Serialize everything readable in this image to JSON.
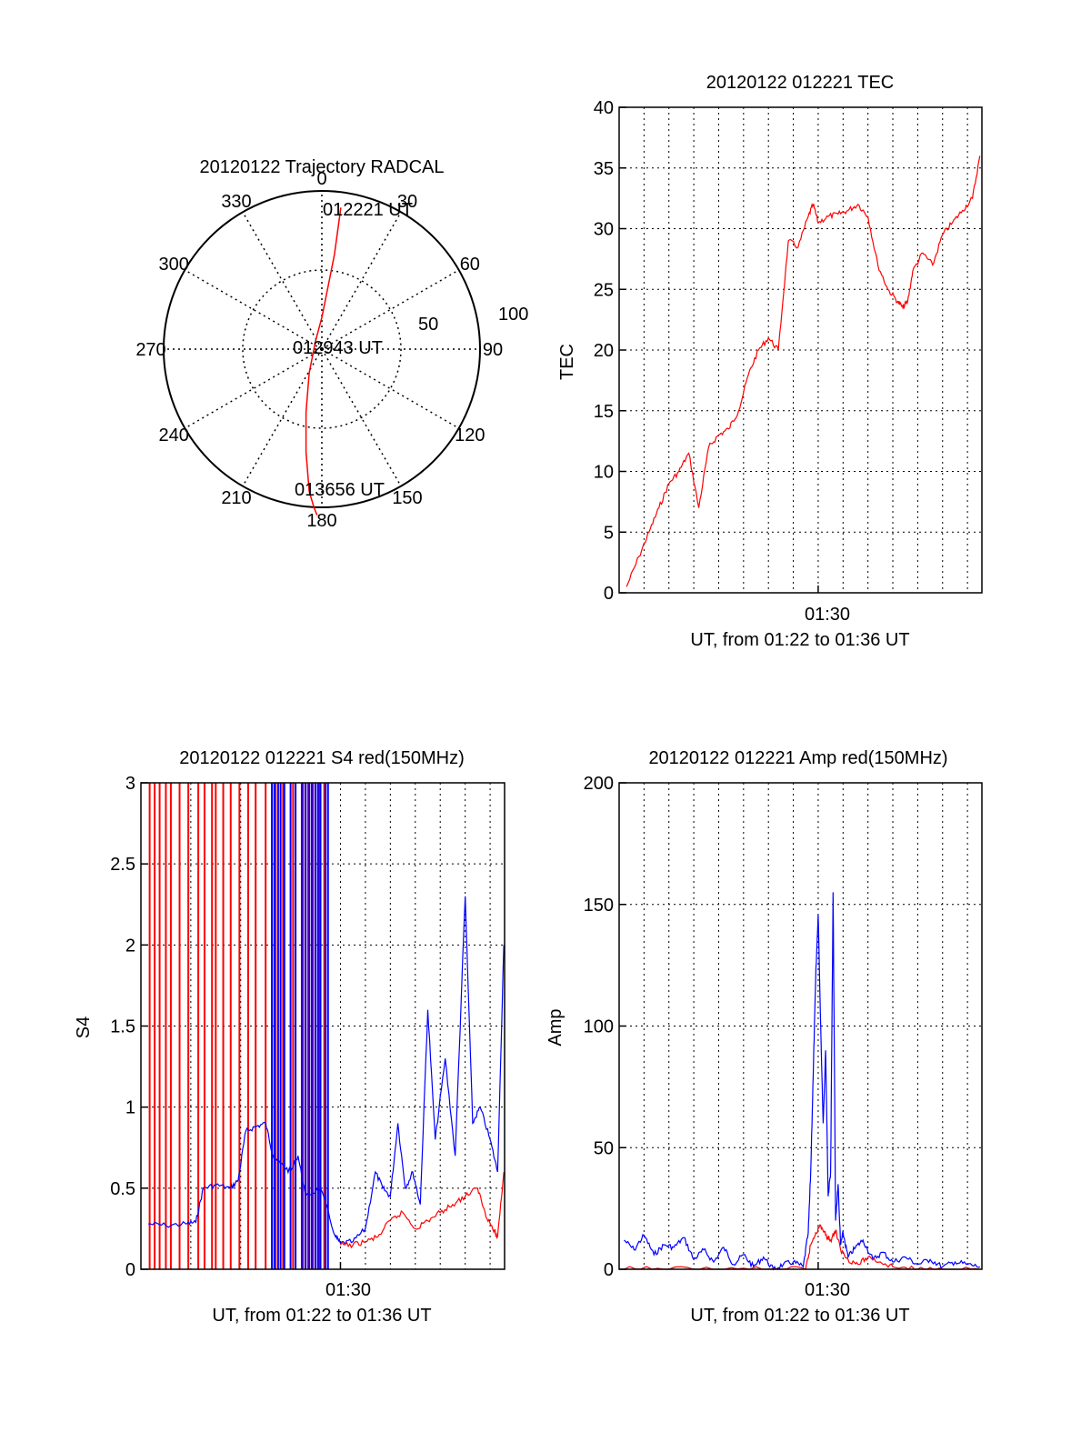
{
  "chart_data": [
    {
      "id": "polar",
      "type": "polar",
      "title": "20120122 Trajectory RADCAL",
      "angle_labels": [
        "0",
        "30",
        "60",
        "90",
        "120",
        "150",
        "180",
        "210",
        "240",
        "270",
        "300",
        "330"
      ],
      "radius_labels": [
        "50",
        "100"
      ],
      "rmax": 100,
      "trajectory": [
        [
          12,
          89.5
        ],
        [
          8,
          60
        ],
        [
          4,
          40
        ],
        [
          0,
          20
        ],
        [
          -4,
          5
        ],
        [
          -8,
          -15
        ],
        [
          -10,
          -40
        ],
        [
          -10,
          -65
        ],
        [
          -8,
          -90
        ],
        [
          -5,
          -100
        ],
        [
          -3,
          -105
        ]
      ],
      "annotations": [
        "012221 UT",
        "012943 UT",
        "013656 UT"
      ],
      "colors": {
        "trajectory": "#ff0000"
      }
    },
    {
      "id": "tec",
      "type": "line",
      "title": "20120122 012221 TEC",
      "xlabel": "UT, from 01:22 to 01:36 UT",
      "ylabel": "TEC",
      "xlim": [
        0,
        14.58
      ],
      "ylim": [
        0,
        40
      ],
      "yticks": [
        "0",
        "5",
        "10",
        "15",
        "20",
        "25",
        "30",
        "35",
        "40"
      ],
      "xtick_label": "01:30",
      "series": [
        {
          "color": "#ff0000",
          "x": [
            0.3,
            0.8,
            1.2,
            1.6,
            2.0,
            2.4,
            2.8,
            3.2,
            3.6,
            4.0,
            4.4,
            4.8,
            5.2,
            5.6,
            6.0,
            6.4,
            6.8,
            7.2,
            7.6,
            7.8,
            8.0,
            8.4,
            8.8,
            9.2,
            9.6,
            10.0,
            10.4,
            10.8,
            11.2,
            11.4,
            11.6,
            11.8,
            12.2,
            12.6,
            13.0,
            13.4,
            13.8,
            14.2,
            14.5
          ],
          "y": [
            0.5,
            3,
            5,
            7,
            9,
            10,
            11.5,
            7,
            12,
            13,
            13.5,
            15,
            18,
            20,
            21,
            20,
            29,
            28.5,
            31,
            32,
            30.5,
            31,
            31.2,
            31.5,
            32,
            31,
            27,
            25,
            24,
            23.5,
            24,
            26.5,
            28,
            27,
            29.5,
            30.5,
            31.5,
            32.5,
            36
          ]
        }
      ]
    },
    {
      "id": "s4",
      "type": "line",
      "title": "20120122 012221 S4 red(150MHz)",
      "xlabel": "UT, from 01:22 to 01:36 UT",
      "ylabel": "S4",
      "xlim": [
        0,
        14.58
      ],
      "ylim": [
        0,
        3
      ],
      "yticks": [
        "0",
        "0.5",
        "1",
        "1.5",
        "2",
        "2.5",
        "3"
      ],
      "xtick_label": "01:30",
      "series": [
        {
          "color": "#0000ff",
          "x": [
            0.3,
            1.0,
            1.8,
            2.2,
            2.5,
            3.0,
            3.6,
            3.9,
            4.2,
            4.6,
            5.0,
            5.3,
            5.6,
            6.0,
            6.3,
            6.6,
            7.2,
            7.8,
            8.0,
            8.5,
            9.0,
            9.4,
            9.7,
            10.0,
            10.3,
            10.6,
            10.9,
            11.2,
            11.5,
            11.8,
            12.2,
            12.6,
            13.0,
            13.3,
            13.6,
            14.0,
            14.3,
            14.55
          ],
          "y": [
            0.28,
            0.27,
            0.28,
            0.29,
            0.5,
            0.52,
            0.5,
            0.55,
            0.85,
            0.88,
            0.9,
            0.7,
            0.65,
            0.6,
            0.7,
            0.45,
            0.5,
            0.2,
            0.16,
            0.17,
            0.25,
            0.6,
            0.5,
            0.45,
            0.9,
            0.5,
            0.6,
            0.4,
            1.6,
            0.8,
            1.3,
            0.7,
            2.3,
            0.9,
            1.0,
            0.8,
            0.6,
            2.0
          ]
        },
        {
          "color": "#ff0000",
          "x": [
            8.0,
            8.5,
            9.0,
            9.5,
            10.0,
            10.5,
            11.0,
            11.5,
            12.0,
            12.5,
            13.0,
            13.5,
            13.8,
            14.1,
            14.3,
            14.55
          ],
          "y": [
            0.15,
            0.15,
            0.17,
            0.2,
            0.3,
            0.35,
            0.25,
            0.3,
            0.35,
            0.4,
            0.45,
            0.5,
            0.35,
            0.25,
            0.2,
            0.6
          ]
        }
      ],
      "spikes": [
        {
          "color": "#ff0000",
          "x": [
            0.35,
            0.55,
            0.75,
            1.0,
            1.2,
            1.55,
            1.9,
            2.3,
            2.55,
            2.85,
            3.0,
            3.3,
            3.6,
            3.95,
            4.3,
            4.6,
            5.0,
            5.4,
            5.7,
            6.1,
            6.5,
            6.7,
            6.9,
            7.15,
            7.35
          ]
        },
        {
          "color": "#0000ff",
          "x": [
            5.25,
            5.35,
            5.5,
            5.6,
            5.75,
            6.0,
            6.2,
            6.45,
            6.6,
            6.75,
            6.85,
            7.0,
            7.1,
            7.2,
            7.4,
            7.5
          ]
        }
      ]
    },
    {
      "id": "amp",
      "type": "line",
      "title": "20120122 012221 Amp red(150MHz)",
      "xlabel": "UT, from 01:22 to 01:36 UT",
      "ylabel": "Amp",
      "xlim": [
        0,
        14.58
      ],
      "ylim": [
        0,
        200
      ],
      "yticks": [
        "0",
        "50",
        "100",
        "150",
        "200"
      ],
      "xtick_label": "01:30",
      "series": [
        {
          "color": "#0000ff",
          "x": [
            0.2,
            0.6,
            1.0,
            1.4,
            1.8,
            2.2,
            2.6,
            3.0,
            3.4,
            3.8,
            4.2,
            4.6,
            5.0,
            5.4,
            5.8,
            6.2,
            6.6,
            7.0,
            7.4,
            7.6,
            7.7,
            7.8,
            7.9,
            8.0,
            8.1,
            8.2,
            8.3,
            8.4,
            8.5,
            8.6,
            8.7,
            8.8,
            8.9,
            9.0,
            9.2,
            9.5,
            9.8,
            10.2,
            10.6,
            11.0,
            11.5,
            12.0,
            12.5,
            13.0,
            13.5,
            14.0,
            14.5
          ],
          "y": [
            12,
            8,
            14,
            6,
            10,
            9,
            13,
            4,
            8,
            3,
            9,
            2,
            6,
            1,
            5,
            0,
            2,
            3,
            1,
            15,
            40,
            80,
            120,
            146,
            100,
            60,
            90,
            30,
            40,
            155,
            20,
            35,
            10,
            15,
            5,
            9,
            12,
            4,
            7,
            3,
            5,
            2,
            4,
            1,
            3,
            2,
            1
          ]
        },
        {
          "color": "#ff0000",
          "x": [
            0.2,
            2.0,
            4.0,
            6.0,
            7.5,
            7.7,
            7.9,
            8.1,
            8.3,
            8.5,
            8.7,
            8.9,
            9.2,
            9.6,
            10.0,
            10.5,
            11.0,
            12.0,
            13.0,
            14.5
          ],
          "y": [
            0,
            0,
            0,
            0,
            0,
            10,
            15,
            18,
            14,
            12,
            16,
            8,
            4,
            2,
            5,
            3,
            1,
            0,
            0,
            0
          ]
        }
      ]
    }
  ]
}
